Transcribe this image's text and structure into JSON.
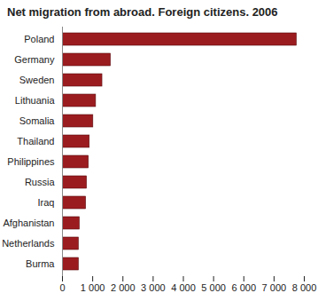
{
  "chart_data": {
    "type": "bar",
    "title": "Net migration from abroad. Foreign citizens. 2006",
    "orientation": "horizontal",
    "categories": [
      "Poland",
      "Germany",
      "Sweden",
      "Lithuania",
      "Somalia",
      "Thailand",
      "Philippines",
      "Russia",
      "Iraq",
      "Afghanistan",
      "Netherlands",
      "Burma"
    ],
    "values": [
      7750,
      1600,
      1320,
      1110,
      1020,
      900,
      870,
      810,
      780,
      570,
      540,
      540
    ],
    "color": "#9b1c1f",
    "xlim": [
      0,
      8000
    ],
    "xticks": [
      0,
      {
        "value": 1000,
        "label": "1 000"
      },
      {
        "value": 2000,
        "label": "2 000"
      },
      {
        "value": 3000,
        "label": "3 000"
      },
      {
        "value": 4000,
        "label": "4 000"
      },
      {
        "value": 5000,
        "label": "5 000"
      },
      {
        "value": 6000,
        "label": "6 000"
      },
      {
        "value": 7000,
        "label": "7 000"
      },
      {
        "value": 8000,
        "label": "8 000"
      }
    ],
    "grid": false
  }
}
